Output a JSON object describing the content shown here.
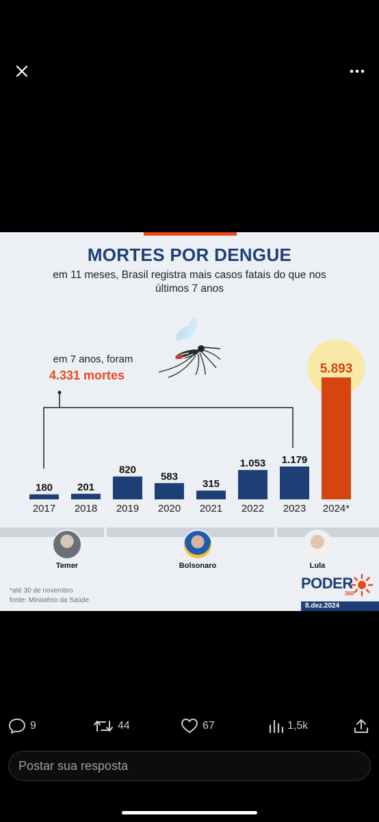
{
  "viewer": {
    "close_icon": "close-icon",
    "more_icon": "more-icon"
  },
  "infographic": {
    "title": "MORTES POR DENGUE",
    "subtitle": "em 11 meses, Brasil registra mais casos fatais do que nos últimos 7 anos",
    "callout_label": "em 7 anos, foram",
    "callout_value": "4.331 mortes",
    "footnote_1": "*até 30 de novembro",
    "footnote_2": "fonte: Ministério da Saúde",
    "logo_word": "PODER",
    "logo_sub": "360",
    "date": "8.dez.2024",
    "presidents": [
      {
        "name": "Temer"
      },
      {
        "name": "Bolsonaro"
      },
      {
        "name": "Lula"
      }
    ],
    "colors": {
      "bar": "#1e3f76",
      "highlight": "#d64510",
      "accent": "#e8491a",
      "glow": "#f9e9a8"
    }
  },
  "chart_data": {
    "type": "bar",
    "title": "MORTES POR DENGUE",
    "categories": [
      "2017",
      "2018",
      "2019",
      "2020",
      "2021",
      "2022",
      "2023",
      "2024*"
    ],
    "values": [
      180,
      201,
      820,
      583,
      315,
      1053,
      1179,
      5893
    ],
    "value_labels": [
      "180",
      "201",
      "820",
      "583",
      "315",
      "1.053",
      "1.179",
      "5.893"
    ],
    "highlight_index": 7,
    "xlabel": "",
    "ylabel": "",
    "grid": false
  },
  "actions": {
    "replies": "9",
    "reposts": "44",
    "likes": "67",
    "views": "1,5k"
  },
  "reply": {
    "placeholder": "Postar sua resposta"
  }
}
